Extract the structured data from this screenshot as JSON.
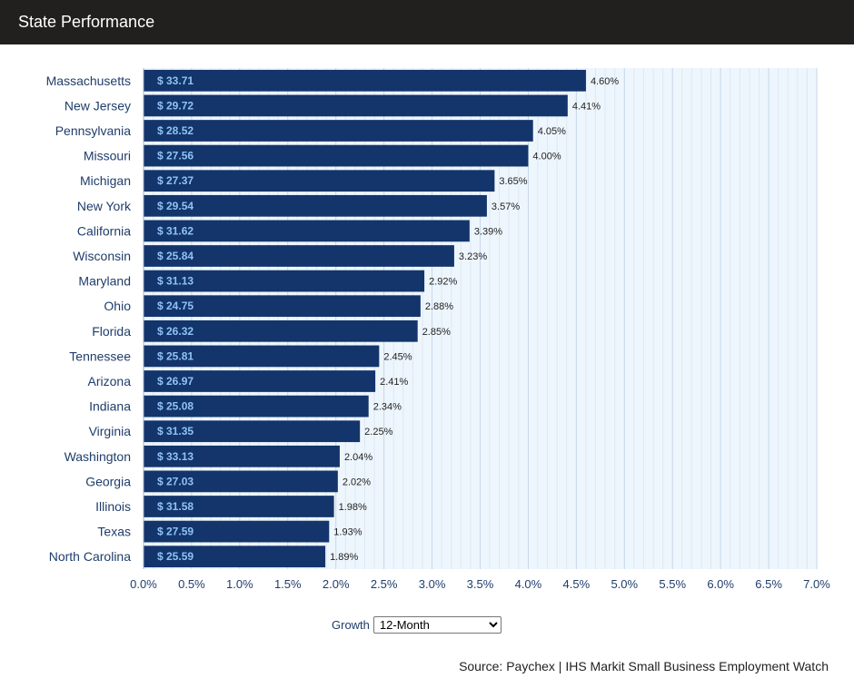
{
  "header": {
    "title": "State Performance"
  },
  "controls": {
    "growth_label": "Growth",
    "period_selected": "12-Month",
    "period_options": [
      "12-Month"
    ]
  },
  "source": "Source: Paychex | IHS Markit Small Business Employment Watch",
  "colors": {
    "header_bg": "#221f1f",
    "bar": "#13356b",
    "bar_label": "#8fc3f5",
    "plot_bg": "#eef6fd",
    "grid": "#c5d6e8",
    "axis_text": "#1f3d6b"
  },
  "chart_data": {
    "type": "bar",
    "orientation": "horizontal",
    "title": "",
    "xlabel": "",
    "ylabel": "",
    "xlim": [
      0,
      7
    ],
    "x_ticks": [
      "0.0%",
      "0.5%",
      "1.0%",
      "1.5%",
      "2.0%",
      "2.5%",
      "3.0%",
      "3.5%",
      "4.0%",
      "4.5%",
      "5.0%",
      "5.5%",
      "6.0%",
      "6.5%",
      "7.0%"
    ],
    "grid": true,
    "categories": [
      "Massachusetts",
      "New Jersey",
      "Pennsylvania",
      "Missouri",
      "Michigan",
      "New York",
      "California",
      "Wisconsin",
      "Maryland",
      "Ohio",
      "Florida",
      "Tennessee",
      "Arizona",
      "Indiana",
      "Virginia",
      "Washington",
      "Georgia",
      "Illinois",
      "Texas",
      "North Carolina"
    ],
    "values": [
      4.6,
      4.41,
      4.05,
      4.0,
      3.65,
      3.57,
      3.39,
      3.23,
      2.92,
      2.88,
      2.85,
      2.45,
      2.41,
      2.34,
      2.25,
      2.04,
      2.02,
      1.98,
      1.93,
      1.89
    ],
    "value_labels": [
      "4.60%",
      "4.41%",
      "4.05%",
      "4.00%",
      "3.65%",
      "3.57%",
      "3.39%",
      "3.23%",
      "2.92%",
      "2.88%",
      "2.85%",
      "2.45%",
      "2.41%",
      "2.34%",
      "2.25%",
      "2.04%",
      "2.02%",
      "1.98%",
      "1.93%",
      "1.89%"
    ],
    "wage_labels": [
      "$ 33.71",
      "$ 29.72",
      "$ 28.52",
      "$ 27.56",
      "$ 27.37",
      "$ 29.54",
      "$ 31.62",
      "$ 25.84",
      "$ 31.13",
      "$ 24.75",
      "$ 26.32",
      "$ 25.81",
      "$ 26.97",
      "$ 25.08",
      "$ 31.35",
      "$ 33.13",
      "$ 27.03",
      "$ 31.58",
      "$ 27.59",
      "$ 25.59"
    ]
  }
}
